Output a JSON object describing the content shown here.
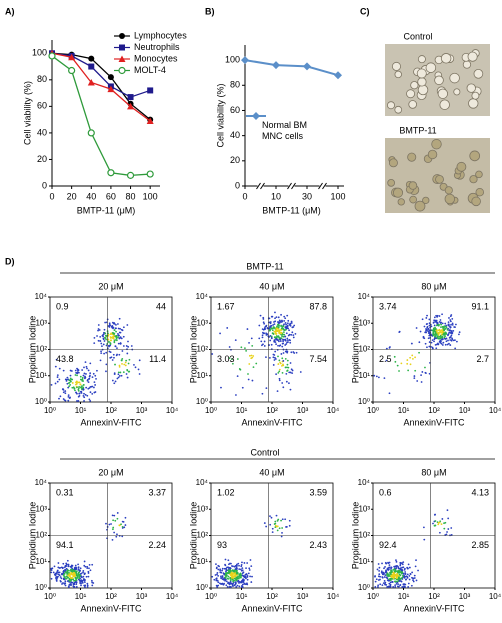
{
  "panel_labels": [
    "A)",
    "B)",
    "C)",
    "D)"
  ],
  "chart_data": [
    {
      "type": "line",
      "x": [
        0,
        20,
        40,
        60,
        80,
        100
      ],
      "xlim": [
        0,
        110
      ],
      "xticks": [
        0,
        20,
        40,
        60,
        80,
        100
      ],
      "ylim": [
        0,
        110
      ],
      "yticks": [
        0,
        20,
        40,
        60,
        80,
        100
      ],
      "x_label": "BMTP-11 (μM)",
      "y_label": "Cell viability (%)",
      "legend": "top-right",
      "series": [
        {
          "name": "Lymphocytes",
          "color": "#000000",
          "marker": "circle",
          "values": [
            100,
            99,
            96,
            82,
            62,
            50
          ]
        },
        {
          "name": "Neutrophils",
          "color": "#1f1a8c",
          "marker": "square",
          "values": [
            100,
            98,
            90,
            75,
            67,
            72
          ]
        },
        {
          "name": "Monocytes",
          "color": "#e02020",
          "marker": "triangle",
          "values": [
            100,
            97,
            78,
            73,
            60,
            49
          ]
        },
        {
          "name": "MOLT-4",
          "color": "#2e9a3a",
          "marker": "open-circle",
          "values": [
            98,
            87,
            40,
            10,
            8,
            9
          ]
        }
      ]
    },
    {
      "type": "line",
      "categories": [
        "0",
        "10",
        "30",
        "100"
      ],
      "ylim": [
        0,
        112
      ],
      "yticks": [
        0,
        20,
        40,
        60,
        80,
        100
      ],
      "x_label": "BMTP-11 (μM)",
      "y_label": "Cell viability (%)",
      "legend": "center",
      "series": [
        {
          "name": "Normal BM MNC cells",
          "color": "#5b8fc9",
          "marker": "diamond",
          "values": [
            100,
            96,
            95,
            88
          ]
        }
      ]
    }
  ],
  "images": [
    "Control",
    "BMTP-11"
  ],
  "flow": {
    "x_label": "AnnexinV-FITC",
    "y_label": "Propidium Iodine",
    "lim": [
      1,
      10000
    ],
    "ticks": [
      {
        "value": 1,
        "label": "10⁰"
      },
      {
        "value": 10,
        "label": "10¹"
      },
      {
        "value": 100,
        "label": "10²"
      },
      {
        "value": 1000,
        "label": "10³"
      },
      {
        "value": 10000,
        "label": "10⁴"
      }
    ],
    "groups": [
      {
        "title": "BMTP-11",
        "plots": [
          {
            "title": "20 μM",
            "quadrants": [
              0.9,
              44,
              43.8,
              11.4
            ]
          },
          {
            "title": "40 μM",
            "quadrants": [
              1.67,
              87.8,
              3.03,
              7.54
            ]
          },
          {
            "title": "80 μM",
            "quadrants": [
              3.74,
              91.1,
              2.5,
              2.7
            ]
          }
        ]
      },
      {
        "title": "Control",
        "plots": [
          {
            "title": "20 μM",
            "quadrants": [
              0.31,
              3.37,
              94.1,
              2.24
            ]
          },
          {
            "title": "40 μM",
            "quadrants": [
              1.02,
              3.59,
              93,
              2.43
            ]
          },
          {
            "title": "80 μM",
            "quadrants": [
              0.6,
              4.13,
              92.4,
              2.85
            ]
          }
        ]
      }
    ]
  }
}
